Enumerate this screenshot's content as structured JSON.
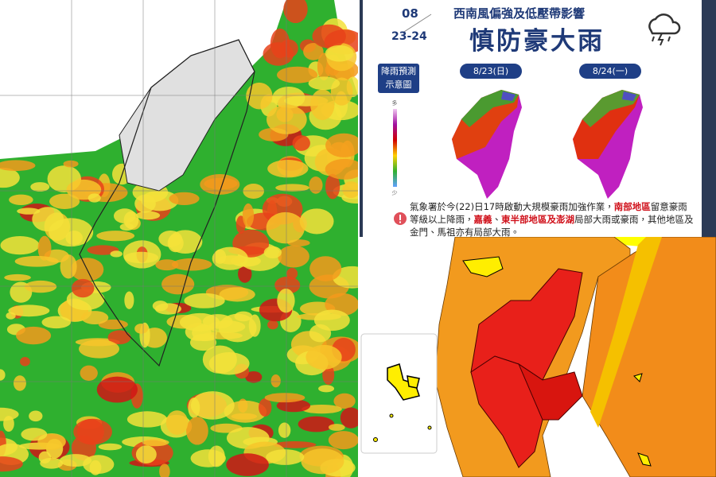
{
  "header": {
    "month": "08",
    "days": "23-24",
    "subtitle": "西南風偏強及低壓帶影響",
    "title": "慎防豪大雨"
  },
  "forecast": {
    "label_line1": "降雨預測",
    "label_line2": "示意圖",
    "day1": "8/23(日)",
    "day2": "8/24(一)",
    "legend_top": "多",
    "legend_bottom": "少"
  },
  "notice": {
    "parts": [
      {
        "text": "氣象署於今(22)日17時啟動大規模豪雨加強作業，",
        "highlight": false
      },
      {
        "text": "南部地區",
        "highlight": true
      },
      {
        "text": "留意豪雨等級以上降雨，",
        "highlight": false
      },
      {
        "text": "嘉義",
        "highlight": true
      },
      {
        "text": "、",
        "highlight": false
      },
      {
        "text": "東半部地區及澎湖",
        "highlight": true
      },
      {
        "text": "局部大雨或豪雨，其他地區及金門、馬祖亦有局部大雨。",
        "highlight": false
      }
    ]
  }
}
